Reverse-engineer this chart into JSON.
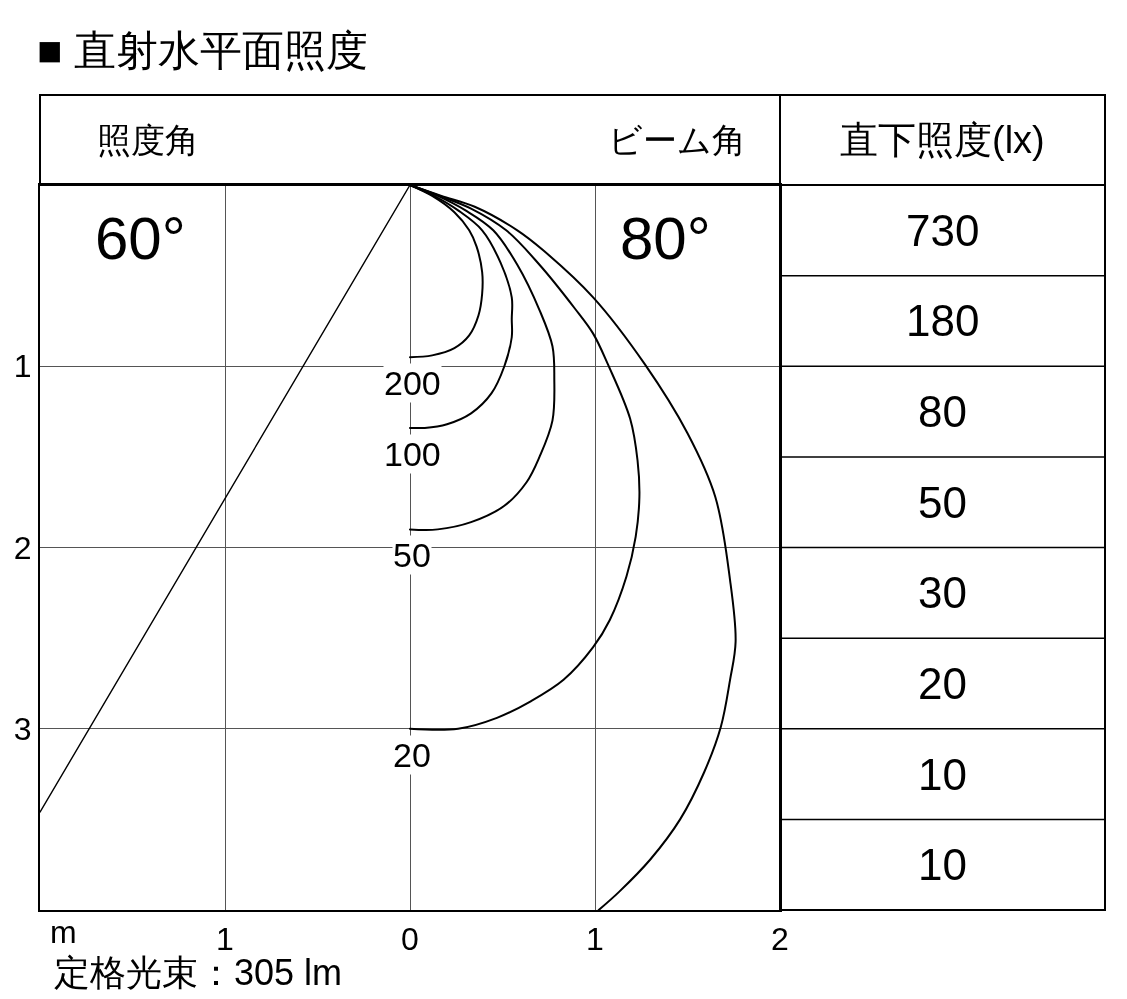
{
  "chart_data": [
    {
      "type": "line",
      "title": "■ 直射水平面照度",
      "xlabel": "m",
      "annotations": [
        "照度角",
        "ビーム角",
        "60°",
        "80°",
        "定格光束：305 lm"
      ],
      "xlim": [
        -2,
        2
      ],
      "ylim": [
        4,
        0
      ],
      "xticks": [
        {
          "value": -1,
          "label": "1"
        },
        0,
        1,
        2
      ],
      "yticks": [
        1,
        2,
        3
      ],
      "grid": true,
      "line_style": "solid",
      "series": [
        {
          "name": "200",
          "color": "#000000",
          "x": [
            0,
            0.12,
            0.24,
            0.32,
            0.36,
            0.39,
            0.39,
            0.37,
            0.32,
            0.24,
            0.12,
            0
          ],
          "values": [
            0,
            0.06,
            0.15,
            0.25,
            0.34,
            0.48,
            0.6,
            0.72,
            0.83,
            0.9,
            0.94,
            0.95
          ]
        },
        {
          "name": "100",
          "color": "#000000",
          "x": [
            0,
            0.13,
            0.26,
            0.39,
            0.49,
            0.55,
            0.55,
            0.55,
            0.51,
            0.44,
            0.33,
            0.2,
            0.08,
            0
          ],
          "values": [
            0,
            0.06,
            0.14,
            0.25,
            0.43,
            0.62,
            0.74,
            0.84,
            1.0,
            1.15,
            1.26,
            1.32,
            1.34,
            1.34
          ]
        },
        {
          "name": "50",
          "color": "#000000",
          "x": [
            0,
            0.15,
            0.3,
            0.45,
            0.58,
            0.7,
            0.77,
            0.78,
            0.77,
            0.7,
            0.63,
            0.51,
            0.33,
            0.15,
            0
          ],
          "values": [
            0,
            0.06,
            0.14,
            0.25,
            0.44,
            0.69,
            0.89,
            1.07,
            1.3,
            1.5,
            1.64,
            1.77,
            1.86,
            1.9,
            1.9
          ]
        },
        {
          "name": "20",
          "color": "#000000",
          "x": [
            0,
            0.16,
            0.33,
            0.52,
            0.7,
            0.89,
            0.99,
            1.07,
            1.19,
            1.23,
            1.24,
            1.22,
            1.17,
            1.08,
            0.99,
            0.83,
            0.65,
            0.47,
            0.26,
            0
          ],
          "values": [
            0,
            0.06,
            0.13,
            0.25,
            0.44,
            0.68,
            0.82,
            0.99,
            1.29,
            1.52,
            1.72,
            1.94,
            2.16,
            2.4,
            2.55,
            2.73,
            2.85,
            2.94,
            3.0,
            3.0
          ]
        },
        {
          "color": "#000000",
          "x": [
            0,
            0.17,
            0.35,
            0.58,
            0.72,
            0.99,
            1.27,
            1.5,
            1.65,
            1.73,
            1.76,
            1.73,
            1.68,
            1.59,
            1.46,
            1.3,
            1.13,
            1.02
          ],
          "values": [
            0,
            0.06,
            0.12,
            0.25,
            0.36,
            0.62,
            0.99,
            1.37,
            1.72,
            2.18,
            2.52,
            2.73,
            2.99,
            3.24,
            3.5,
            3.72,
            3.9,
            4.0
          ]
        },
        {
          "color": "#000000",
          "x": [
            0,
            -2
          ],
          "values": [
            0,
            3.46
          ]
        }
      ]
    },
    {
      "type": "other",
      "title": "直下照度(lx)",
      "annotations": [
        "730",
        "180",
        "80",
        "50",
        "30",
        "20",
        "10",
        "10"
      ]
    }
  ]
}
